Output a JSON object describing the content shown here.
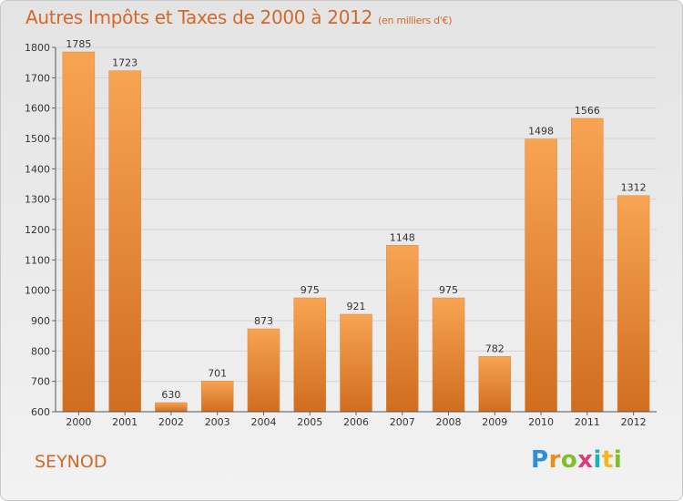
{
  "header": {
    "title": "Autres Impôts et Taxes de 2000 à 2012",
    "unit": "(en milliers d'€)"
  },
  "footer": {
    "place": "SEYNOD",
    "logo_text": "Proxiti"
  },
  "colors": {
    "bar_light": "#f7a453",
    "bar_dark": "#d16d1f",
    "title": "#d2692a"
  },
  "chart_data": {
    "type": "bar",
    "title": "Autres Impôts et Taxes de 2000 à 2012",
    "subtitle": "(en milliers d'€)",
    "categories": [
      "2000",
      "2001",
      "2002",
      "2003",
      "2004",
      "2005",
      "2006",
      "2007",
      "2008",
      "2009",
      "2010",
      "2011",
      "2012"
    ],
    "values": [
      1785,
      1723,
      630,
      701,
      873,
      975,
      921,
      1148,
      975,
      782,
      1498,
      1566,
      1312
    ],
    "ylim": [
      600,
      1800
    ],
    "yticks": [
      600,
      700,
      800,
      900,
      1000,
      1100,
      1200,
      1300,
      1400,
      1500,
      1600,
      1700,
      1800
    ],
    "grid": true,
    "data_labels": true
  }
}
